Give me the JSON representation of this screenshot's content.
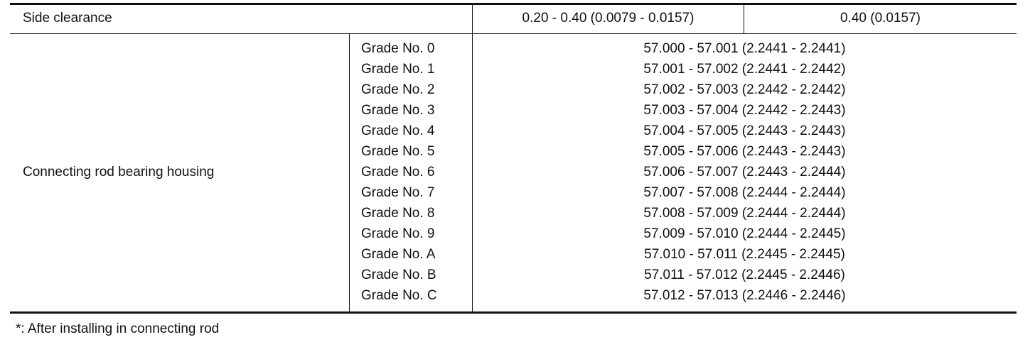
{
  "table": {
    "side_clearance": {
      "label": "Side clearance",
      "standard": "0.20 - 0.40 (0.0079 - 0.0157)",
      "limit": "0.40 (0.0157)"
    },
    "housing": {
      "label": "Connecting rod bearing housing",
      "grades": [
        {
          "grade": "Grade No. 0",
          "value": "57.000 - 57.001 (2.2441 - 2.2441)"
        },
        {
          "grade": "Grade No. 1",
          "value": "57.001 - 57.002 (2.2441 - 2.2442)"
        },
        {
          "grade": "Grade No. 2",
          "value": "57.002 - 57.003 (2.2442 - 2.2442)"
        },
        {
          "grade": "Grade No. 3",
          "value": "57.003 - 57.004 (2.2442 - 2.2443)"
        },
        {
          "grade": "Grade No. 4",
          "value": "57.004 - 57.005 (2.2443 - 2.2443)"
        },
        {
          "grade": "Grade No. 5",
          "value": "57.005 - 57.006 (2.2443 - 2.2443)"
        },
        {
          "grade": "Grade No. 6",
          "value": "57.006 - 57.007 (2.2443 - 2.2444)"
        },
        {
          "grade": "Grade No. 7",
          "value": "57.007 - 57.008 (2.2444 - 2.2444)"
        },
        {
          "grade": "Grade No. 8",
          "value": "57.008 - 57.009 (2.2444 - 2.2444)"
        },
        {
          "grade": "Grade No. 9",
          "value": "57.009 - 57.010 (2.2444 - 2.2445)"
        },
        {
          "grade": "Grade No. A",
          "value": "57.010 - 57.011 (2.2445 - 2.2445)"
        },
        {
          "grade": "Grade No. B",
          "value": "57.011 - 57.012 (2.2445 - 2.2446)"
        },
        {
          "grade": "Grade No. C",
          "value": "57.012 - 57.013 (2.2446 - 2.2446)"
        }
      ]
    }
  },
  "footnote": "*: After installing in connecting rod"
}
